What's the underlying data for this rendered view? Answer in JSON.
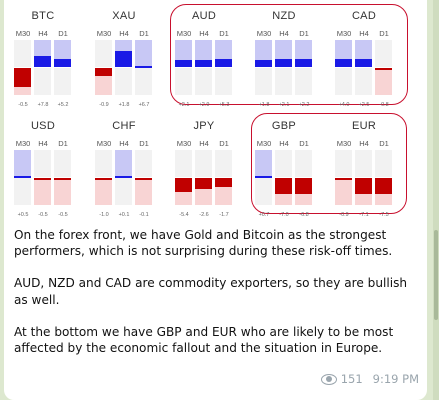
{
  "timeframes": [
    "M30",
    "H4",
    "D1"
  ],
  "colors": {
    "bull_strong": "#1a1ae6",
    "bull_light": "#c8c8f5",
    "bear_strong": "#c00000",
    "bear_light": "#f8d4d4",
    "neutral": "#f2f2f2",
    "highlight": "#c8102e"
  },
  "groups": [
    {
      "name": "BTC",
      "values": [
        "-0.5",
        "+7.8",
        "+5.2"
      ],
      "strength": [
        -0.7,
        0.4,
        0.3
      ]
    },
    {
      "name": "XAU",
      "values": [
        "-0.9",
        "+1.8",
        "+6.7"
      ],
      "strength": [
        -0.3,
        0.6,
        0.8
      ]
    },
    {
      "name": "AUD",
      "values": [
        "+2.1",
        "+2.9",
        "+5.3"
      ],
      "strength": [
        0.25,
        0.25,
        0.3
      ]
    },
    {
      "name": "NZD",
      "values": [
        "+1.8",
        "+2.1",
        "+2.2"
      ],
      "strength": [
        0.25,
        0.3,
        0.3
      ]
    },
    {
      "name": "CAD",
      "values": [
        "+4.0",
        "+2.5",
        "-0.8"
      ],
      "strength": [
        0.3,
        0.3,
        -0.05
      ]
    },
    {
      "name": "USD",
      "values": [
        "+0.5",
        "-0.5",
        "-0.5"
      ],
      "strength": [
        0.8,
        -0.05,
        -0.05
      ]
    },
    {
      "name": "CHF",
      "values": [
        "-1.0",
        "+0.1",
        "-0.1"
      ],
      "strength": [
        -0.05,
        0.9,
        -0.05
      ]
    },
    {
      "name": "JPY",
      "values": [
        "-5.4",
        "-2.6",
        "-1.7"
      ],
      "strength": [
        -0.5,
        -0.4,
        -0.35
      ]
    },
    {
      "name": "GBP",
      "values": [
        "+0.7",
        "-7.0",
        "-6.8"
      ],
      "strength": [
        0.95,
        -0.6,
        -0.6
      ]
    },
    {
      "name": "EUR",
      "values": [
        "-0.9",
        "-7.1",
        "-7.5"
      ],
      "strength": [
        -0.1,
        -0.6,
        -0.6
      ]
    }
  ],
  "message": {
    "paragraphs": [
      "On the forex front, we have Gold and Bitcoin as the strongest performers, which is not surprising during these risk-off times.",
      "AUD, NZD and CAD are commodity exporters, so they are bullish as well.",
      "At the bottom we have GBP and EUR who are likely to be most affected by the economic fallout and the situation in Europe."
    ],
    "views": "151",
    "time": "9:19 PM"
  }
}
